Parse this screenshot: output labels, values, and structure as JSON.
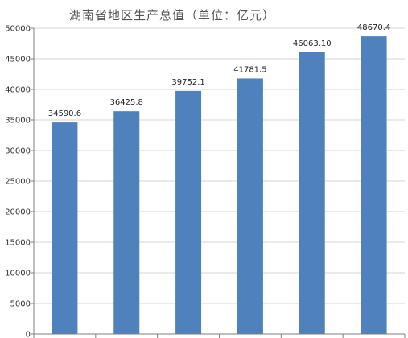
{
  "chart_data": {
    "type": "bar",
    "title": "湖南省地区生产总值（单位：亿元）",
    "categories": [
      "",
      "",
      "",
      "",
      "",
      ""
    ],
    "values": [
      34590.6,
      36425.8,
      39752.1,
      41781.5,
      46063.1,
      48670.4
    ],
    "data_labels": [
      "34590.6",
      "36425.8",
      "39752.1",
      "41781.5",
      "46063.10",
      "48670.4"
    ],
    "xlabel": "",
    "ylabel": "",
    "ylim": [
      0,
      50000
    ],
    "yticks": [
      0,
      5000,
      10000,
      15000,
      20000,
      25000,
      30000,
      35000,
      40000,
      45000,
      50000
    ],
    "grid": true,
    "legend": "none",
    "bar_color": "#4f81bd"
  }
}
